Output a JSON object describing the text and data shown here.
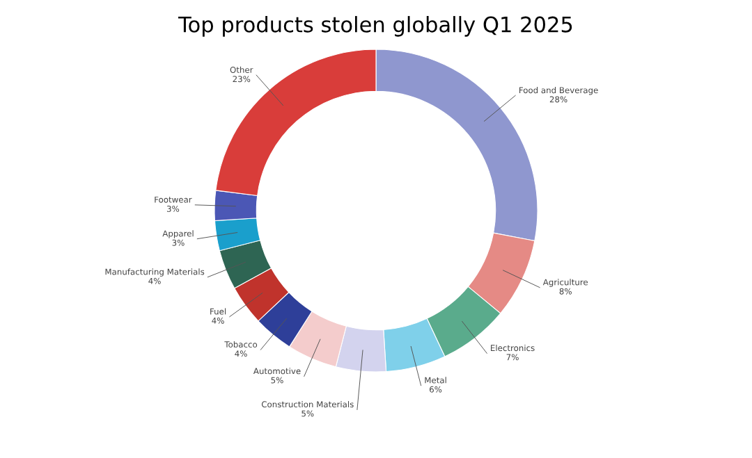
{
  "chart_data": {
    "type": "donut",
    "title": "Top products stolen globally Q1 2025",
    "categories": [
      "Food and Beverage",
      "Agriculture",
      "Electronics",
      "Metal",
      "Construction Materials",
      "Automotive",
      "Tobacco",
      "Fuel",
      "Manufacturing Materials",
      "Apparel",
      "Footwear",
      "Other"
    ],
    "values": [
      28,
      8,
      7,
      6,
      5,
      5,
      4,
      4,
      4,
      3,
      3,
      23
    ],
    "colors": [
      "#8f97cf",
      "#e58a85",
      "#5aab8c",
      "#7fd0ea",
      "#d3d3ee",
      "#f4cccc",
      "#2e3f99",
      "#c0332c",
      "#2e6553",
      "#1a9fcc",
      "#4b57b5",
      "#d93d3a"
    ],
    "value_labels": [
      "28%",
      "8%",
      "7%",
      "6%",
      "5%",
      "5%",
      "4%",
      "4%",
      "4%",
      "3%",
      "3%",
      "23%"
    ],
    "legend": false
  }
}
